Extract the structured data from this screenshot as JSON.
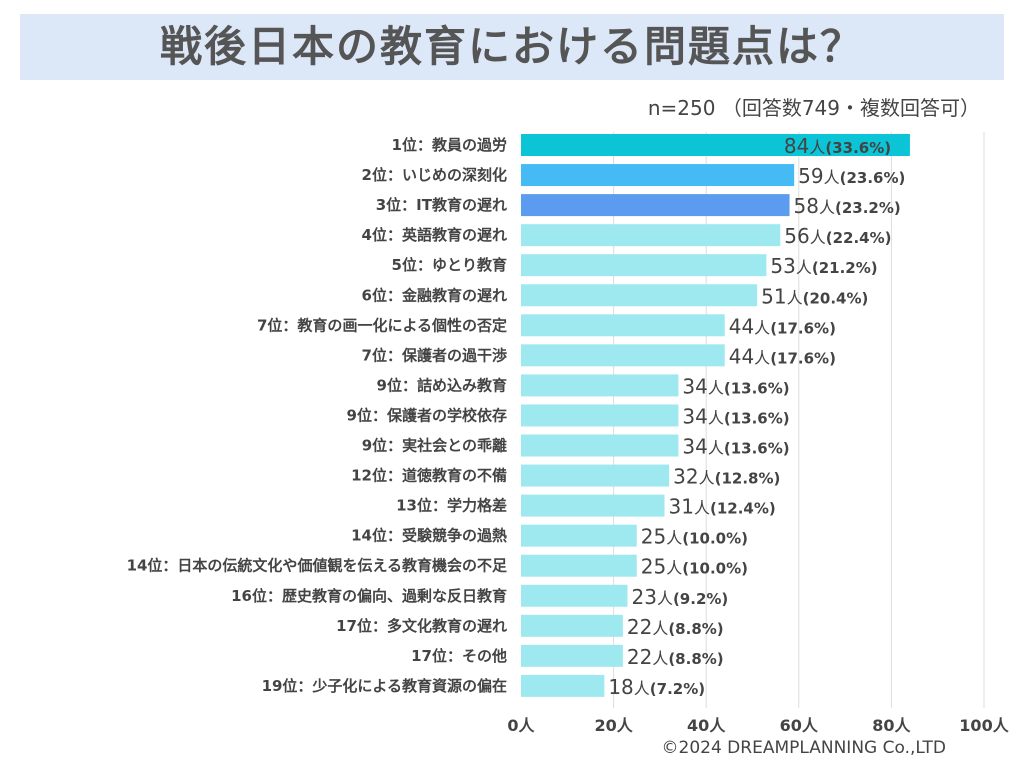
{
  "header": {
    "title": "戦後日本の教育における問題点は？",
    "sample_note": "n=250 （回答数749・複数回答可）"
  },
  "footer": {
    "copyright": "©2024 DREAMPLANNING Co.,LTD"
  },
  "colors": {
    "rank1": "#0bc4d6",
    "rank2": "#46baf5",
    "rank3": "#5b9cf0",
    "default": "#9ee8f0",
    "gridline": "#dddddd"
  },
  "chart_data": {
    "type": "bar",
    "orientation": "horizontal",
    "title": "戦後日本の教育における問題点は？",
    "categories": [
      "1位：教員の過労",
      "2位：いじめの深刻化",
      "3位：IT教育の遅れ",
      "4位：英語教育の遅れ",
      "5位：ゆとり教育",
      "6位：金融教育の遅れ",
      "7位：教育の画一化による個性の否定",
      "7位：保護者の過干渉",
      "9位：詰め込み教育",
      "9位：保護者の学校依存",
      "9位：実社会との乖離",
      "12位：道徳教育の不備",
      "13位：学力格差",
      "14位：受験競争の過熱",
      "14位：日本の伝統文化や価値観を伝える教育機会の不足",
      "16位：歴史教育の偏向、過剰な反日教育",
      "17位：多文化教育の遅れ",
      "17位：その他",
      "19位：少子化による教育資源の偏在"
    ],
    "values": [
      84,
      59,
      58,
      56,
      53,
      51,
      44,
      44,
      34,
      34,
      34,
      32,
      31,
      25,
      25,
      23,
      22,
      22,
      18
    ],
    "percents": [
      "(33.6%)",
      "(23.6%)",
      "(23.2%)",
      "(22.4%)",
      "(21.2%)",
      "(20.4%)",
      "(17.6%)",
      "(17.6%)",
      "(13.6%)",
      "(13.6%)",
      "(13.6%)",
      "(12.8%)",
      "(12.4%)",
      "(10.0%)",
      "(10.0%)",
      "(9.2%)",
      "(8.8%)",
      "(8.8%)",
      "(7.2%)"
    ],
    "unit": "人",
    "xlim": [
      0,
      100
    ],
    "xticks": [
      0,
      20,
      40,
      60,
      80,
      100
    ],
    "xtick_labels": [
      "0人",
      "20人",
      "40人",
      "60人",
      "80人",
      "100人"
    ],
    "grid": true
  }
}
